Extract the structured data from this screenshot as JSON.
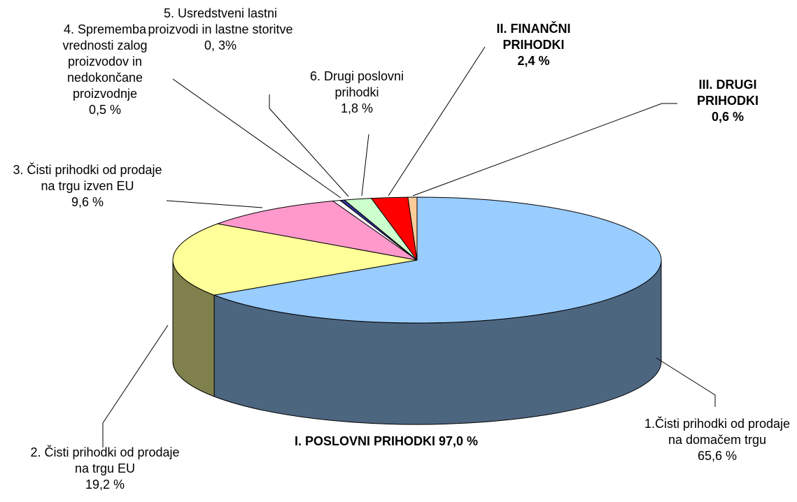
{
  "chart_data": {
    "type": "pie",
    "categories": [
      "1.Čisti prihodki od prodaje na domačem trgu",
      "2. Čisti prihodki od prodaje na trgu EU",
      "3. Čisti prihodki od prodaje na trgu izven EU",
      "4. Sprememba vrednosti zalog proizvodov in nedokončane proizvodnje",
      "5. Usredstveni lastni proizvodi in lastne storitve",
      "6. Drugi poslovni prihodki",
      "II. FINANČNI PRIHODKI",
      "III. DRUGI PRIHODKI"
    ],
    "values": [
      65.6,
      19.2,
      9.6,
      0.5,
      0.3,
      1.8,
      2.4,
      0.6
    ],
    "value_labels": [
      "65,6 %",
      "19,2 %",
      "9,6 %",
      "0,5 %",
      "0, 3%",
      "1,8 %",
      "2,4 %",
      "0,6 %"
    ],
    "colors": [
      "#99ccff",
      "#ffff99",
      "#ff99cc",
      "#ffffff",
      "#333399",
      "#ccffcc",
      "#ff0000",
      "#ffcc99"
    ],
    "annotations": [
      "I. POSLOVNI PRIHODKI 97,0 %"
    ]
  }
}
